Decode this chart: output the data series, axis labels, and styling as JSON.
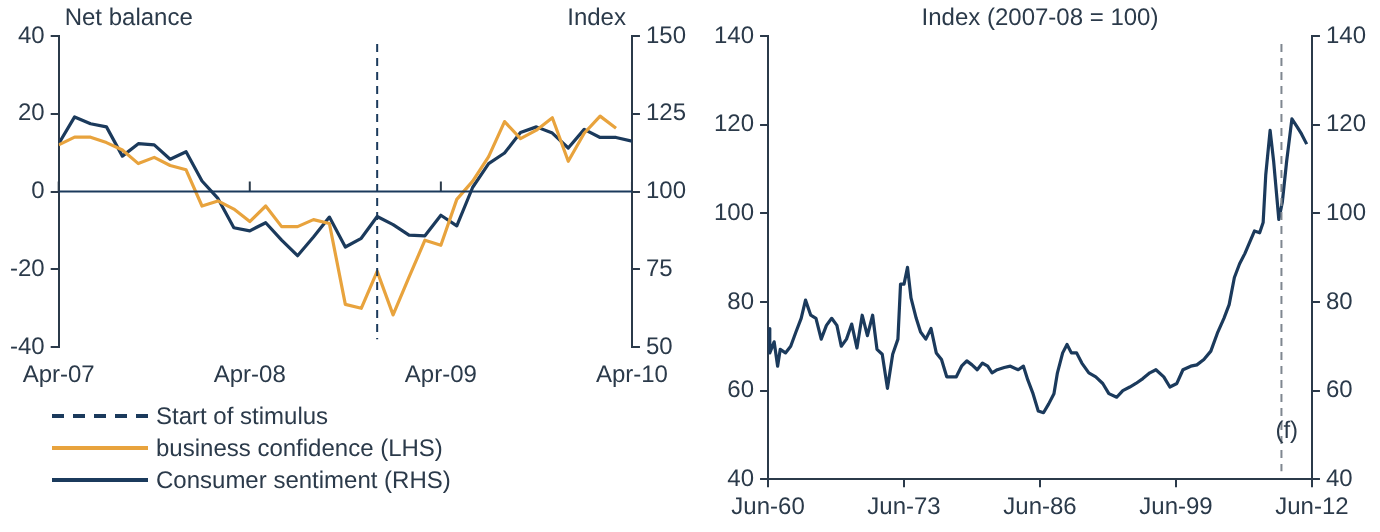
{
  "chart_data": [
    {
      "type": "line",
      "ylabel": "Net balance",
      "y2label": "Index",
      "x": [
        "2007-04",
        "2007-05",
        "2007-06",
        "2007-07",
        "2007-08",
        "2007-09",
        "2007-10",
        "2007-11",
        "2007-12",
        "2008-01",
        "2008-02",
        "2008-03",
        "2008-04",
        "2008-05",
        "2008-06",
        "2008-07",
        "2008-08",
        "2008-09",
        "2008-10",
        "2008-11",
        "2008-12",
        "2009-01",
        "2009-02",
        "2009-03",
        "2009-04",
        "2009-05",
        "2009-06",
        "2009-07",
        "2009-08",
        "2009-09",
        "2009-10",
        "2009-11",
        "2009-12",
        "2010-01",
        "2010-02",
        "2010-03",
        "2010-04"
      ],
      "series": [
        {
          "name": "business confidence (LHS)",
          "color": "#e8a33d",
          "axis": "y",
          "values": [
            12,
            14,
            14,
            12.6,
            10.7,
            7.2,
            8.8,
            6.7,
            5.6,
            -3.7,
            -2.4,
            -4.5,
            -7.7,
            -3.7,
            -9,
            -9,
            -7.2,
            -8.2,
            -29,
            -30,
            -20.5,
            -31.7,
            -22,
            -12.5,
            -13.8,
            -2,
            2.7,
            9,
            18,
            13.6,
            15.8,
            19,
            7.8,
            15,
            19.4,
            16.3,
            null
          ]
        },
        {
          "name": "Consumer sentiment (RHS)",
          "color": "#1b3a5c",
          "axis": "y2",
          "values": [
            115.4,
            124,
            121.8,
            120.8,
            111.4,
            115.4,
            115,
            110.4,
            112.8,
            103.4,
            97.8,
            88.4,
            87.4,
            90,
            84.4,
            79.4,
            85.4,
            91.8,
            82.2,
            85,
            92,
            89.4,
            86,
            85.8,
            92.4,
            89,
            101.4,
            109,
            112.4,
            119,
            120.8,
            118.8,
            114,
            120,
            117.4,
            117.4,
            116.2
          ]
        }
      ],
      "xlim": [
        "2007-04",
        "2010-04"
      ],
      "xticks": [
        {
          "value": "2007-04",
          "label": "Apr-07"
        },
        {
          "value": "2008-04",
          "label": "Apr-08"
        },
        {
          "value": "2009-04",
          "label": "Apr-09"
        },
        {
          "value": "2010-04",
          "label": "Apr-10"
        }
      ],
      "ylim": [
        -40,
        40
      ],
      "yticks": [
        -40,
        -20,
        0,
        20,
        40
      ],
      "y2lim": [
        50,
        150
      ],
      "y2ticks": [
        50,
        75,
        100,
        125,
        150
      ],
      "ref_lines": [
        {
          "axis": "x",
          "value": "2008-12",
          "label": "Start of stimulus",
          "color": "#1b3a5c",
          "line_style": "dashed"
        },
        {
          "axis": "y",
          "value": 0,
          "color": "#1b3a5c",
          "line_style": "solid"
        }
      ],
      "grid": false,
      "legend": "bottom",
      "marker": "none",
      "line_style": "solid"
    },
    {
      "type": "line",
      "title": "Index (2007-08 = 100)",
      "series": [
        {
          "color": "#1b3a5c",
          "axis": "y",
          "x": [
            "1960-06",
            "1960-08",
            "1961-01",
            "1961-05",
            "1961-08",
            "1962-02",
            "1962-08",
            "1963-02",
            "1963-08",
            "1964-01",
            "1964-07",
            "1965-01",
            "1965-07",
            "1966-01",
            "1966-07",
            "1967-01",
            "1967-06",
            "1967-12",
            "1968-06",
            "1968-12",
            "1969-06",
            "1969-12",
            "1970-06",
            "1970-11",
            "1971-05",
            "1971-11",
            "1972-05",
            "1972-11",
            "1973-02",
            "1973-06",
            "1973-10",
            "1974-02",
            "1974-08",
            "1975-01",
            "1975-07",
            "1976-01",
            "1976-07",
            "1977-01",
            "1977-07",
            "1978-01",
            "1978-06",
            "1978-12",
            "1979-06",
            "1979-12",
            "1980-06",
            "1980-12",
            "1981-06",
            "1981-11",
            "1982-05",
            "1983-01",
            "1983-08",
            "1984-05",
            "1984-11",
            "1985-04",
            "1985-10",
            "1986-04",
            "1986-10",
            "1987-04",
            "1987-10",
            "1988-02",
            "1988-08",
            "1989-01",
            "1989-06",
            "1989-12",
            "1990-06",
            "1991-02",
            "1991-10",
            "1992-06",
            "1993-01",
            "1993-10",
            "1994-05",
            "1995-01",
            "1995-08",
            "1996-04",
            "1996-12",
            "1997-07",
            "1998-04",
            "1998-11",
            "1999-07",
            "2000-02",
            "2000-11",
            "2001-06",
            "2002-02",
            "2002-10",
            "2003-06",
            "2004-01",
            "2004-07",
            "2005-01",
            "2005-07",
            "2006-01",
            "2006-06",
            "2006-12",
            "2007-06",
            "2007-10",
            "2008-01",
            "2008-06",
            "2008-10",
            "2009-04",
            "2009-08",
            "2010-01",
            "2010-07",
            "2011-01",
            "2011-06",
            "2011-12"
          ],
          "values": [
            74,
            68.5,
            71,
            65.5,
            69.3,
            68.5,
            70,
            73.2,
            76.3,
            80.4,
            77,
            76.3,
            71.6,
            74.7,
            76.3,
            74.7,
            70,
            71.6,
            75,
            69.6,
            77,
            72.4,
            77,
            69.3,
            68.2,
            60.5,
            68.2,
            71.6,
            84,
            84,
            87.8,
            80.9,
            76.3,
            73.2,
            71.6,
            74,
            68.5,
            67,
            63.1,
            63.1,
            63.1,
            65.5,
            66.7,
            65.8,
            64.7,
            66.2,
            65.5,
            64,
            64.7,
            65.2,
            65.5,
            64.7,
            65.5,
            62.4,
            59.3,
            55.4,
            55,
            57,
            59.3,
            64,
            68.5,
            70.4,
            68.5,
            68.5,
            66.2,
            64,
            63.1,
            61.6,
            59.3,
            58.5,
            60,
            60.8,
            61.6,
            62.7,
            64,
            64.7,
            63.1,
            60.8,
            61.6,
            64.7,
            65.5,
            65.8,
            67,
            68.9,
            73.2,
            76.3,
            79.4,
            85.5,
            88.6,
            90.9,
            93.2,
            96,
            95.6,
            97.9,
            108.7,
            118.7,
            111.8,
            98.6,
            102.5,
            111.8,
            121.3,
            119.5,
            117.9,
            115.6
          ]
        }
      ],
      "xlim": [
        "1960-06",
        "2012-06"
      ],
      "xticks": [
        {
          "value": "1960-06",
          "label": "Jun-60"
        },
        {
          "value": "1973-06",
          "label": "Jun-73"
        },
        {
          "value": "1986-06",
          "label": "Jun-86"
        },
        {
          "value": "1999-06",
          "label": "Jun-99"
        },
        {
          "value": "2012-06",
          "label": "Jun-12"
        }
      ],
      "ylim": [
        40,
        140
      ],
      "yticks": [
        40,
        60,
        80,
        100,
        120,
        140
      ],
      "y2lim": [
        40,
        140
      ],
      "y2ticks": [
        40,
        60,
        80,
        100,
        120,
        140
      ],
      "ref_lines": [
        {
          "axis": "x",
          "value": "2009-07",
          "label": "(f)",
          "color": "#7f8790",
          "line_style": "dashed"
        }
      ],
      "grid": false,
      "marker": "none",
      "line_style": "solid"
    }
  ]
}
